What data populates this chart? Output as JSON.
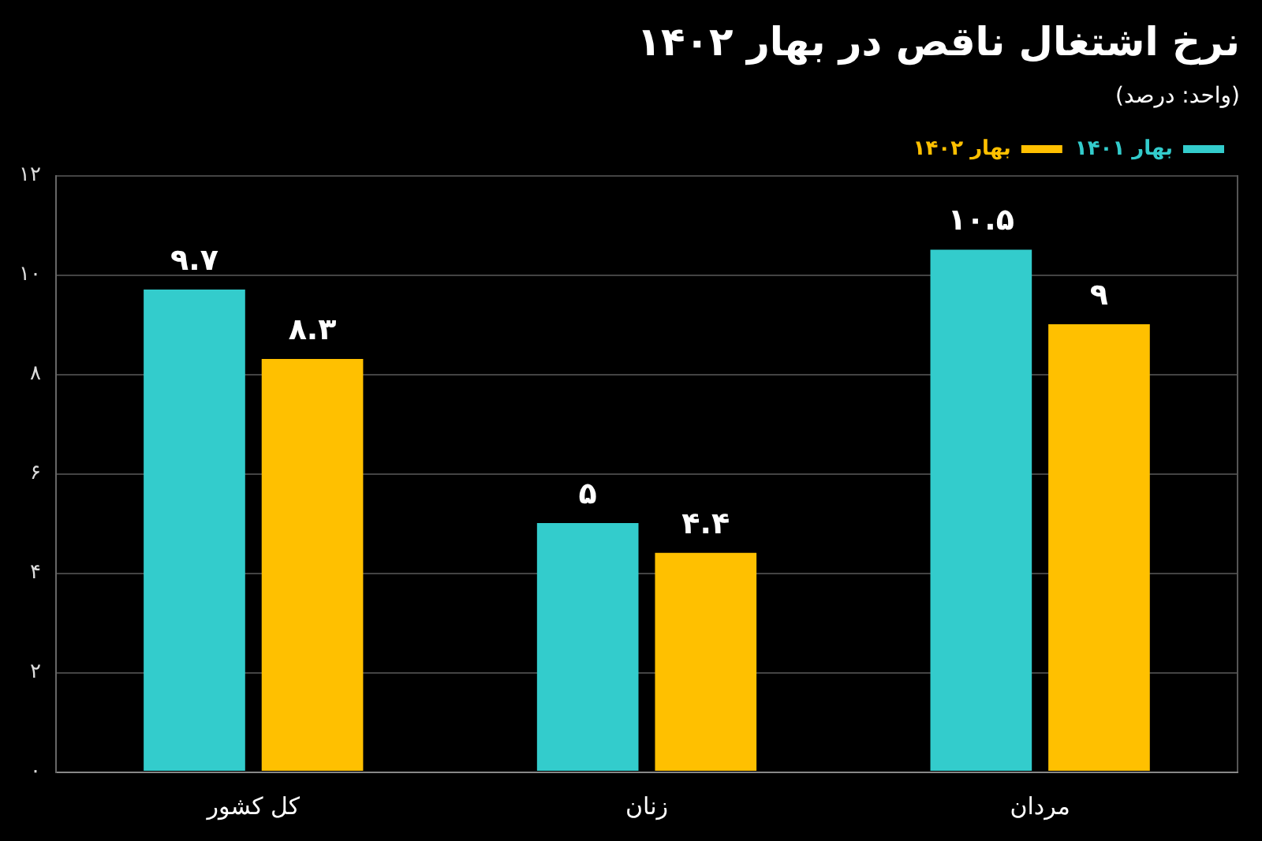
{
  "chart_data": {
    "type": "bar",
    "title": "نرخ اشتغال ناقص در بهار ۱۴۰۲",
    "subtitle": "(واحد: درصد)",
    "categories": [
      "کل کشور",
      "زنان",
      "مردان"
    ],
    "series": [
      {
        "name": "بهار ۱۴۰۱",
        "color": "#33cccc",
        "values": [
          9.7,
          5,
          10.5
        ],
        "value_labels": [
          "۹.۷",
          "۵",
          "۱۰.۵"
        ]
      },
      {
        "name": "بهار ۱۴۰۲",
        "color": "#ffc000",
        "values": [
          8.3,
          4.4,
          9
        ],
        "value_labels": [
          "۸.۳",
          "۴.۴",
          "۹"
        ]
      }
    ],
    "ylim": [
      0,
      12
    ],
    "yticks": [
      {
        "value": 0,
        "label": "۰"
      },
      {
        "value": 2,
        "label": "۲"
      },
      {
        "value": 4,
        "label": "۴"
      },
      {
        "value": 6,
        "label": "۶"
      },
      {
        "value": 8,
        "label": "۸"
      },
      {
        "value": 10,
        "label": "۱۰"
      },
      {
        "value": 12,
        "label": "۱۲"
      }
    ],
    "grid": "y",
    "legend": "top right"
  }
}
